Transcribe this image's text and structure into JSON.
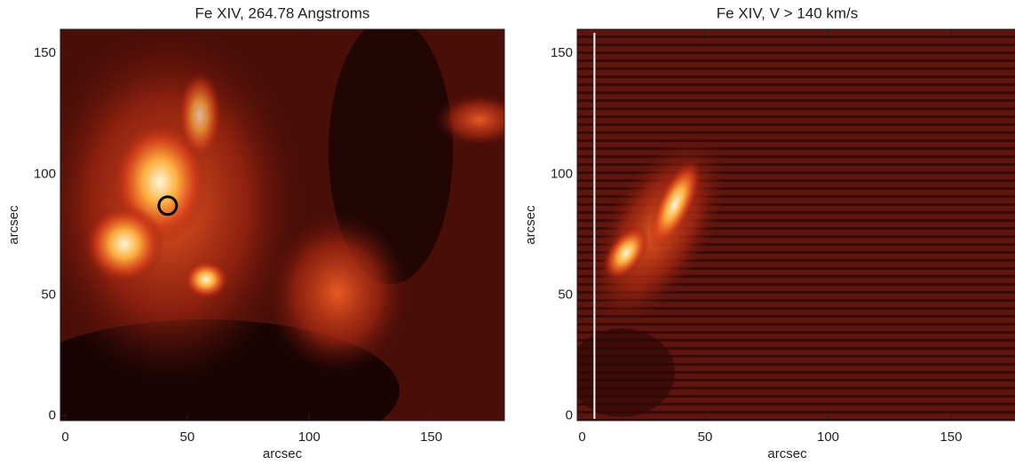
{
  "chart_data": [
    {
      "type": "image",
      "title": "Fe XIV, 264.78 Angstroms",
      "xlabel": "arcsec",
      "ylabel": "arcsec",
      "xlim": [
        -2,
        180
      ],
      "ylim": [
        -2,
        160
      ],
      "xticks": [
        0,
        50,
        100,
        150
      ],
      "yticks": [
        0,
        50,
        100,
        150
      ],
      "points": {
        "x": [
          42
        ],
        "y": [
          87
        ]
      }
    },
    {
      "type": "image",
      "title": "Fe XIV, V > 140 km/s",
      "xlabel": "arcsec",
      "ylabel": "arcsec",
      "xlim": [
        -2,
        176
      ],
      "ylim": [
        -2,
        160
      ],
      "xticks": [
        0,
        50,
        100,
        150
      ],
      "yticks": [
        0,
        50,
        100,
        150
      ],
      "vlines": [
        5
      ]
    }
  ]
}
